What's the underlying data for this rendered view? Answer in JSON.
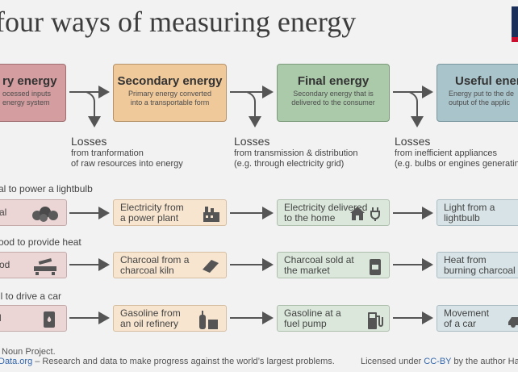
{
  "title": "four ways of measuring energy",
  "stages": [
    {
      "title": "ry energy",
      "desc": "ocessed inputs\nenergy system"
    },
    {
      "title": "Secondary energy",
      "desc": "Primary energy converted\ninto a transportable form"
    },
    {
      "title": "Final energy",
      "desc": "Secondary energy that is\ndelivered to the consumer"
    },
    {
      "title": "Useful ener",
      "desc": "Energy put to the de\noutput of the applic"
    }
  ],
  "losses": [
    {
      "heading": "Losses",
      "line1": "from tranformation",
      "line2": "of raw resources into energy"
    },
    {
      "heading": "Losses",
      "line1": "from transmission & distribution",
      "line2": "(e.g. through electricity grid)"
    },
    {
      "heading": "Losses",
      "line1": "from inefficient appliances",
      "line2": "(e.g. bulbs or engines generatin"
    }
  ],
  "examples": [
    {
      "label": "al to power a lightbulb",
      "cells": [
        "al",
        "Electricity from\na power plant",
        "Electricity delivered\nto the home",
        "Light from a\nlightbulb"
      ],
      "icons": [
        "coal-icon",
        "power-plant-icon",
        "house-plug-icon",
        "lightbulb-icon"
      ]
    },
    {
      "label": "ood to provide heat",
      "cells": [
        "od",
        "Charcoal from a\ncharcoal kiln",
        "Charcoal sold at\nthe market",
        "Heat from\nburning charcoal"
      ],
      "icons": [
        "wood-saw-icon",
        "charcoal-icon",
        "charcoal-bag-icon",
        "fire-icon"
      ]
    },
    {
      "label": "il to drive a car",
      "cells": [
        "l",
        "Gasoline from\nan oil refinery",
        "Gasoline at a\nfuel pump",
        "Movement\nof a car"
      ],
      "icons": [
        "oil-barrel-icon",
        "refinery-icon",
        "fuel-pump-icon",
        "car-icon"
      ]
    }
  ],
  "footer": {
    "credit": "Noun Project.",
    "site": "Data.org",
    "tagline": " – Research and data to make progress against the world’s largest problems.",
    "license_prefix": "Licensed under ",
    "license": "CC-BY",
    "license_suffix": " by the author Ha"
  },
  "colors": {
    "primary": "#d49d9f",
    "secondary": "#f0c99b",
    "final": "#aacaaa",
    "useful": "#a9c4cb",
    "arrow": "#555555",
    "link": "#3366aa"
  }
}
